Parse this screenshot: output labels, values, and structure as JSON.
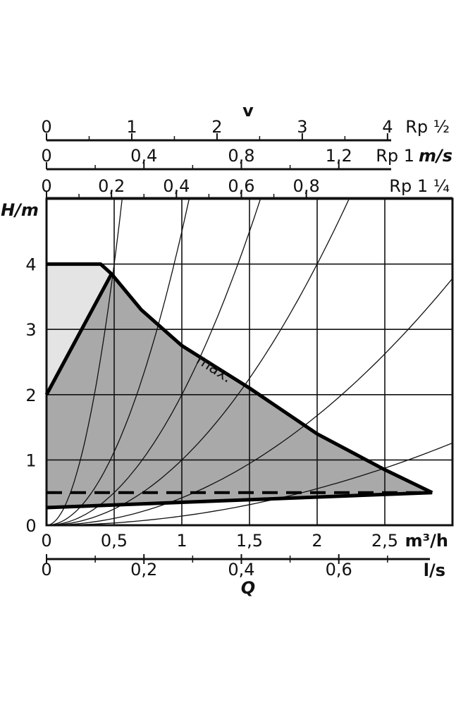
{
  "chart_data": {
    "type": "area",
    "ylabel": "H/m",
    "xlabel": "Q",
    "x_unit_primary": "m³/h",
    "x_unit_secondary": "l/s",
    "velocity_label": "v",
    "velocity_unit": "m/s",
    "xlim": [
      0,
      3.0
    ],
    "ylim": [
      0,
      5.0
    ],
    "grid": true,
    "x_ticks_primary": [
      "0",
      "0,5",
      "1",
      "1,5",
      "2",
      "2,5"
    ],
    "x_tick_values_primary": [
      0,
      0.5,
      1,
      1.5,
      2,
      2.5
    ],
    "x_ticks_secondary": [
      "0",
      "0,2",
      "0,4",
      "0,6"
    ],
    "x_tick_values_secondary": [
      0,
      0.2,
      0.4,
      0.6
    ],
    "y_ticks": [
      "0",
      "1",
      "2",
      "3",
      "4"
    ],
    "y_tick_values": [
      0,
      1,
      2,
      3,
      4
    ],
    "velocity_scales": [
      {
        "name": "Rp ½",
        "ticks": [
          "0",
          "1",
          "2",
          "3",
          "4"
        ],
        "ticks_m3h": [
          0,
          0.63,
          1.26,
          1.89,
          2.52
        ]
      },
      {
        "name": "Rp 1",
        "ticks": [
          "0",
          "0,4",
          "0,8",
          "1,2"
        ],
        "ticks_m3h": [
          0,
          0.72,
          1.44,
          2.16
        ]
      },
      {
        "name": "Rp 1 ¼",
        "ticks": [
          "0",
          "0,2",
          "0,4",
          "0,6",
          "0,8"
        ],
        "ticks_m3h": [
          0,
          0.48,
          0.96,
          1.44,
          1.92
        ]
      }
    ],
    "series": [
      {
        "name": "max.",
        "x": [
          0,
          0.4,
          0.48,
          0.7,
          1.0,
          1.5,
          2.0,
          2.5,
          2.85
        ],
        "y": [
          4.0,
          4.0,
          3.85,
          3.3,
          2.75,
          2.1,
          1.4,
          0.85,
          0.5
        ]
      },
      {
        "name": "",
        "x": [
          0,
          0.48
        ],
        "y": [
          2.0,
          3.85
        ]
      },
      {
        "name": "",
        "x": [
          0,
          2.85
        ],
        "y": [
          0.27,
          0.5
        ]
      },
      {
        "name": "",
        "x": [
          0,
          2.85
        ],
        "y": [
          0.5,
          0.5
        ]
      }
    ],
    "system_curve_k": [
      16.0,
      4.5,
      2.0,
      1.0,
      0.42,
      0.14
    ]
  }
}
